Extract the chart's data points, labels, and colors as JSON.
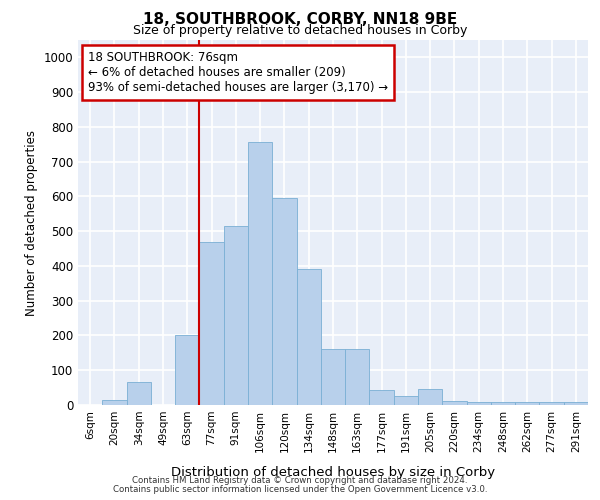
{
  "title1": "18, SOUTHBROOK, CORBY, NN18 9BE",
  "title2": "Size of property relative to detached houses in Corby",
  "xlabel": "Distribution of detached houses by size in Corby",
  "ylabel": "Number of detached properties",
  "categories": [
    "6sqm",
    "20sqm",
    "34sqm",
    "49sqm",
    "63sqm",
    "77sqm",
    "91sqm",
    "106sqm",
    "120sqm",
    "134sqm",
    "148sqm",
    "163sqm",
    "177sqm",
    "191sqm",
    "205sqm",
    "220sqm",
    "234sqm",
    "248sqm",
    "262sqm",
    "277sqm",
    "291sqm"
  ],
  "bar_heights": [
    0,
    13,
    65,
    0,
    200,
    470,
    515,
    757,
    595,
    390,
    160,
    160,
    42,
    25,
    45,
    12,
    8,
    8,
    10,
    8,
    8
  ],
  "bar_color": "#b8d0eb",
  "bar_edge_color": "#7aafd4",
  "annotation_text": "18 SOUTHBROOK: 76sqm\n← 6% of detached houses are smaller (209)\n93% of semi-detached houses are larger (3,170) →",
  "annotation_box_color": "#ffffff",
  "annotation_box_edge": "#cc0000",
  "vline_color": "#cc0000",
  "vline_x_index": 5,
  "ylim": [
    0,
    1050
  ],
  "yticks": [
    0,
    100,
    200,
    300,
    400,
    500,
    600,
    700,
    800,
    900,
    1000
  ],
  "footnote1": "Contains HM Land Registry data © Crown copyright and database right 2024.",
  "footnote2": "Contains public sector information licensed under the Open Government Licence v3.0.",
  "background_color": "#e8eef8",
  "grid_color": "#ffffff"
}
